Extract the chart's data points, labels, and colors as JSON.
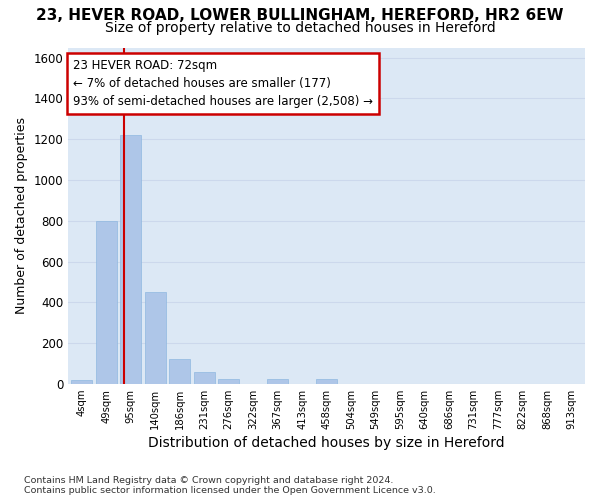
{
  "title1": "23, HEVER ROAD, LOWER BULLINGHAM, HEREFORD, HR2 6EW",
  "title2": "Size of property relative to detached houses in Hereford",
  "xlabel": "Distribution of detached houses by size in Hereford",
  "ylabel": "Number of detached properties",
  "footnote": "Contains HM Land Registry data © Crown copyright and database right 2024.\nContains public sector information licensed under the Open Government Licence v3.0.",
  "categories": [
    "4sqm",
    "49sqm",
    "95sqm",
    "140sqm",
    "186sqm",
    "231sqm",
    "276sqm",
    "322sqm",
    "367sqm",
    "413sqm",
    "458sqm",
    "504sqm",
    "549sqm",
    "595sqm",
    "640sqm",
    "686sqm",
    "731sqm",
    "777sqm",
    "822sqm",
    "868sqm",
    "913sqm"
  ],
  "values": [
    20,
    800,
    1220,
    450,
    120,
    60,
    25,
    0,
    25,
    0,
    25,
    0,
    0,
    0,
    0,
    0,
    0,
    0,
    0,
    0,
    0
  ],
  "bar_color": "#aec6e8",
  "bar_edge_color": "#8fb8e0",
  "vline_color": "#cc0000",
  "annotation_text": "23 HEVER ROAD: 72sqm\n← 7% of detached houses are smaller (177)\n93% of semi-detached houses are larger (2,508) →",
  "annotation_box_color": "#ffffff",
  "annotation_box_edge": "#cc0000",
  "ylim": [
    0,
    1650
  ],
  "yticks": [
    0,
    200,
    400,
    600,
    800,
    1000,
    1200,
    1400,
    1600
  ],
  "grid_color": "#ccd8ec",
  "plot_bg_color": "#dce8f5",
  "fig_bg_color": "#ffffff",
  "title1_fontsize": 11,
  "title2_fontsize": 10,
  "xlabel_fontsize": 10,
  "ylabel_fontsize": 9,
  "annot_fontsize": 8.5
}
